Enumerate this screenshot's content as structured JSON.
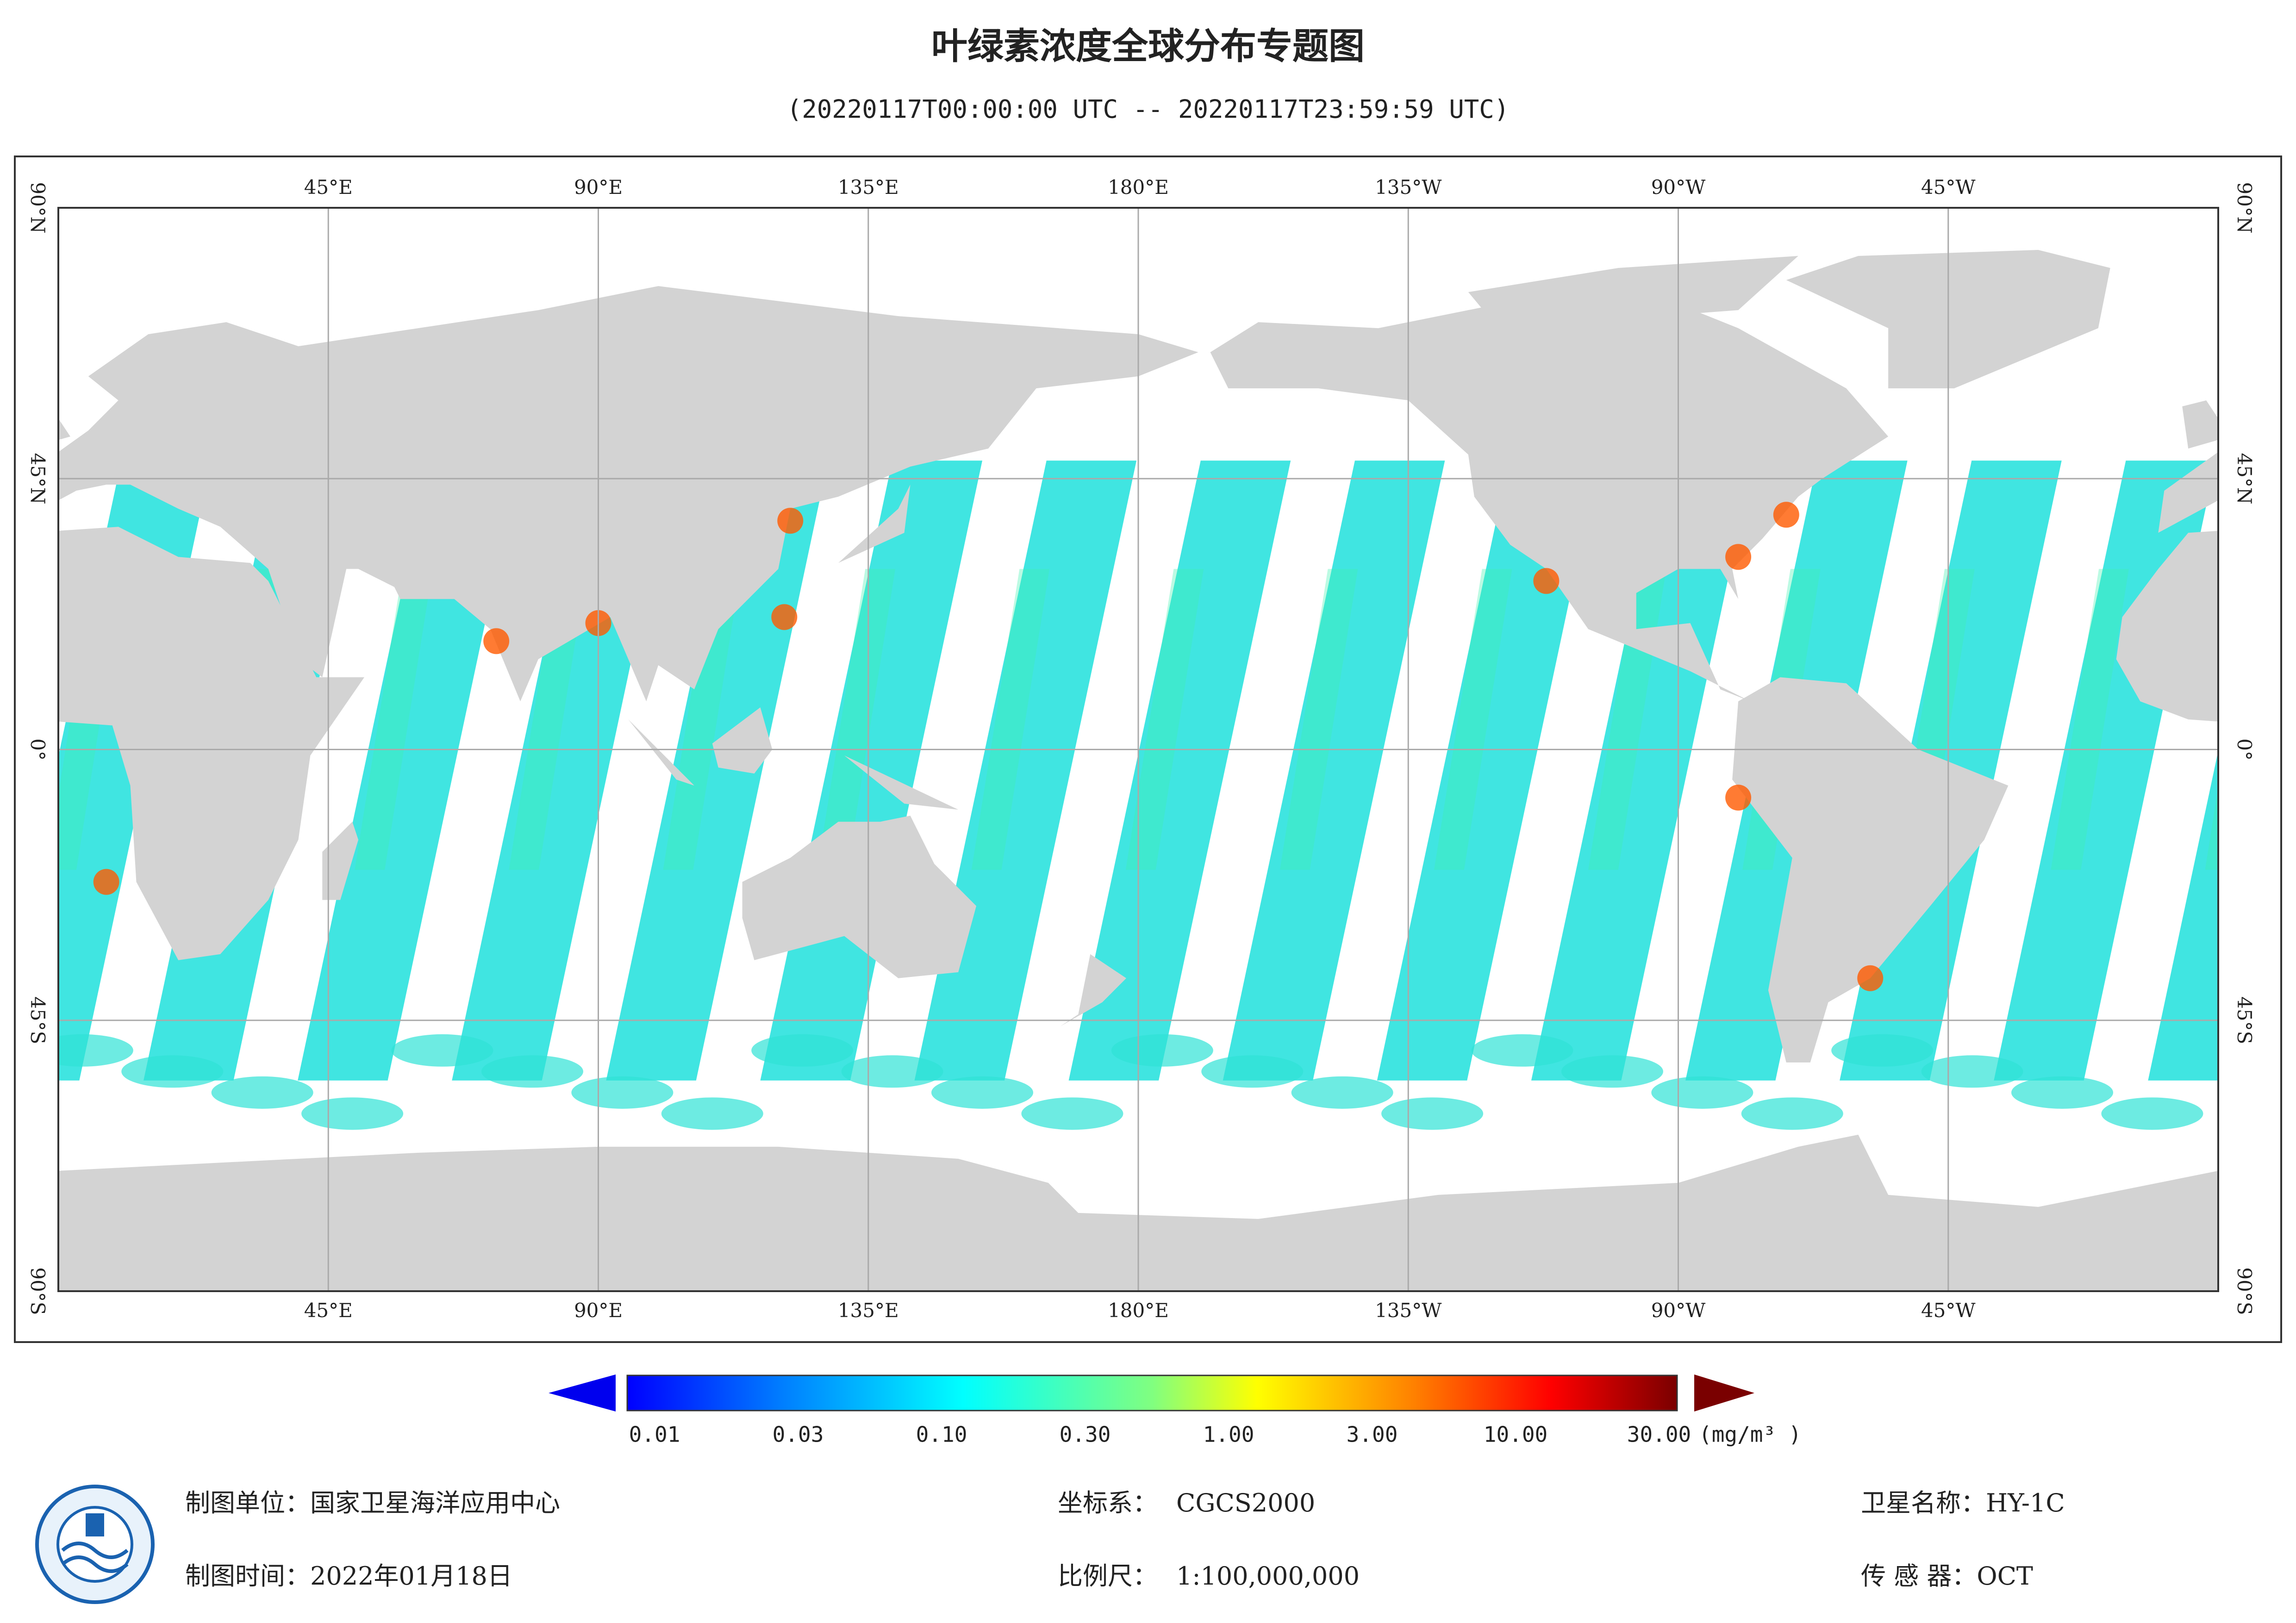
{
  "header": {
    "title": "叶绿素浓度全球分布专题图",
    "subtitle": "(20220117T00:00:00 UTC -- 20220117T23:59:59 UTC)"
  },
  "map": {
    "lon_labels": [
      "45°E",
      "90°E",
      "135°E",
      "180°E",
      "135°W",
      "90°W",
      "45°W"
    ],
    "lat_labels": [
      "90°N",
      "45°N",
      "0°",
      "45°S",
      "90°S"
    ]
  },
  "colorbar": {
    "labels": [
      "0.01",
      "0.03",
      "0.10",
      "0.30",
      "1.00",
      "3.00",
      "10.00",
      "30.00"
    ],
    "unit": "(mg/m³ )"
  },
  "footer": {
    "unit": {
      "label": "制图单位：",
      "value": "国家卫星海洋应用中心"
    },
    "date": {
      "label": "制图时间：",
      "value": "2022年01月18日"
    },
    "crs": {
      "label": "坐标系：",
      "value": "CGCS2000"
    },
    "scale": {
      "label": "比例尺：",
      "value": "1:100,000,000"
    },
    "satellite": {
      "label": "卫星名称：",
      "value": "HY-1C"
    },
    "sensor": {
      "label": "传 感 器：",
      "value": "OCT"
    }
  }
}
